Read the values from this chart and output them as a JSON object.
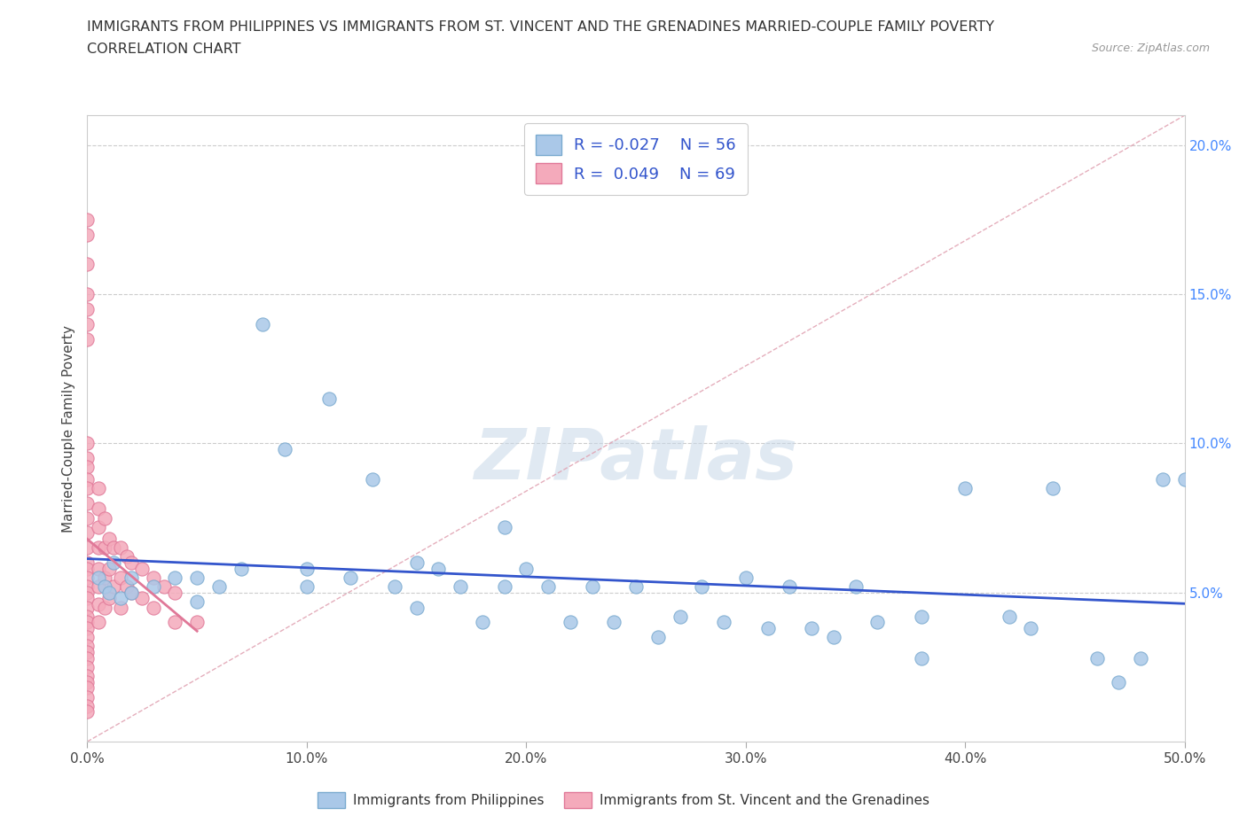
{
  "title_line1": "IMMIGRANTS FROM PHILIPPINES VS IMMIGRANTS FROM ST. VINCENT AND THE GRENADINES MARRIED-COUPLE FAMILY POVERTY",
  "title_line2": "CORRELATION CHART",
  "source": "Source: ZipAtlas.com",
  "ylabel": "Married-Couple Family Poverty",
  "xlim": [
    0.0,
    0.5
  ],
  "ylim": [
    0.0,
    0.21
  ],
  "xticks": [
    0.0,
    0.1,
    0.2,
    0.3,
    0.4,
    0.5
  ],
  "xtick_labels": [
    "0.0%",
    "10.0%",
    "20.0%",
    "30.0%",
    "40.0%",
    "50.0%"
  ],
  "yticks": [
    0.05,
    0.1,
    0.15,
    0.2
  ],
  "ytick_labels": [
    "5.0%",
    "10.0%",
    "15.0%",
    "20.0%"
  ],
  "blue_color": "#aac8e8",
  "pink_color": "#f4aabb",
  "blue_edge": "#7aaacf",
  "pink_edge": "#e07898",
  "trend_blue": "#3355cc",
  "trend_pink": "#e07898",
  "diag_color": "#e0a0b0",
  "R_blue": -0.027,
  "N_blue": 56,
  "R_pink": 0.049,
  "N_pink": 69,
  "legend_label_blue": "Immigrants from Philippines",
  "legend_label_pink": "Immigrants from St. Vincent and the Grenadines",
  "watermark": "ZIPatlas",
  "blue_x": [
    0.005,
    0.008,
    0.01,
    0.012,
    0.015,
    0.02,
    0.02,
    0.03,
    0.04,
    0.05,
    0.05,
    0.06,
    0.07,
    0.08,
    0.09,
    0.1,
    0.1,
    0.11,
    0.12,
    0.13,
    0.14,
    0.15,
    0.15,
    0.16,
    0.17,
    0.18,
    0.19,
    0.19,
    0.2,
    0.21,
    0.22,
    0.23,
    0.24,
    0.25,
    0.26,
    0.27,
    0.28,
    0.29,
    0.3,
    0.31,
    0.32,
    0.33,
    0.34,
    0.35,
    0.36,
    0.38,
    0.38,
    0.4,
    0.42,
    0.43,
    0.44,
    0.46,
    0.47,
    0.48,
    0.49,
    0.5
  ],
  "blue_y": [
    0.055,
    0.052,
    0.05,
    0.06,
    0.048,
    0.055,
    0.05,
    0.052,
    0.055,
    0.055,
    0.047,
    0.052,
    0.058,
    0.14,
    0.098,
    0.052,
    0.058,
    0.115,
    0.055,
    0.088,
    0.052,
    0.06,
    0.045,
    0.058,
    0.052,
    0.04,
    0.072,
    0.052,
    0.058,
    0.052,
    0.04,
    0.052,
    0.04,
    0.052,
    0.035,
    0.042,
    0.052,
    0.04,
    0.055,
    0.038,
    0.052,
    0.038,
    0.035,
    0.052,
    0.04,
    0.028,
    0.042,
    0.085,
    0.042,
    0.038,
    0.085,
    0.028,
    0.02,
    0.028,
    0.088,
    0.088
  ],
  "pink_x": [
    0.0,
    0.0,
    0.0,
    0.0,
    0.0,
    0.0,
    0.0,
    0.0,
    0.0,
    0.0,
    0.0,
    0.0,
    0.0,
    0.0,
    0.0,
    0.0,
    0.0,
    0.0,
    0.0,
    0.0,
    0.0,
    0.0,
    0.0,
    0.0,
    0.0,
    0.0,
    0.0,
    0.0,
    0.0,
    0.0,
    0.0,
    0.0,
    0.0,
    0.0,
    0.0,
    0.0,
    0.0,
    0.005,
    0.005,
    0.005,
    0.005,
    0.005,
    0.005,
    0.005,
    0.005,
    0.008,
    0.008,
    0.008,
    0.008,
    0.01,
    0.01,
    0.01,
    0.012,
    0.012,
    0.015,
    0.015,
    0.015,
    0.018,
    0.018,
    0.02,
    0.02,
    0.025,
    0.025,
    0.03,
    0.03,
    0.035,
    0.04,
    0.04,
    0.05
  ],
  "pink_y": [
    0.175,
    0.17,
    0.16,
    0.15,
    0.145,
    0.14,
    0.135,
    0.1,
    0.095,
    0.092,
    0.088,
    0.085,
    0.08,
    0.075,
    0.07,
    0.065,
    0.06,
    0.058,
    0.055,
    0.052,
    0.05,
    0.048,
    0.045,
    0.042,
    0.04,
    0.038,
    0.035,
    0.032,
    0.03,
    0.028,
    0.025,
    0.022,
    0.02,
    0.018,
    0.015,
    0.012,
    0.01,
    0.085,
    0.078,
    0.072,
    0.065,
    0.058,
    0.052,
    0.046,
    0.04,
    0.075,
    0.065,
    0.055,
    0.045,
    0.068,
    0.058,
    0.048,
    0.065,
    0.052,
    0.065,
    0.055,
    0.045,
    0.062,
    0.052,
    0.06,
    0.05,
    0.058,
    0.048,
    0.055,
    0.045,
    0.052,
    0.05,
    0.04,
    0.04
  ]
}
